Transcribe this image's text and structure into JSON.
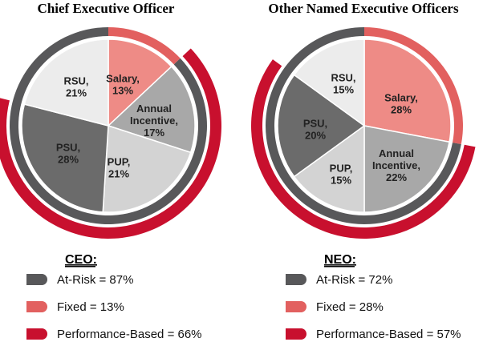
{
  "chart_data": [
    {
      "type": "pie",
      "title": "Chief Executive Officer",
      "slices": [
        {
          "label": [
            "Salary,",
            "13%"
          ],
          "value": 13,
          "color": "#ee8b86"
        },
        {
          "label": [
            "Annual",
            "Incentive,",
            "17%"
          ],
          "value": 17,
          "color": "#a8a8a8"
        },
        {
          "label": [
            "PUP,",
            "21%"
          ],
          "value": 21,
          "color": "#d3d3d3"
        },
        {
          "label": [
            "PSU,",
            "28%"
          ],
          "value": 28,
          "color": "#6b6b6b"
        },
        {
          "label": [
            "RSU,",
            "21%"
          ],
          "value": 21,
          "color": "#ececec"
        }
      ],
      "rings": [
        {
          "name": "At-Risk",
          "value": 87,
          "color": "#58585a"
        },
        {
          "name": "Fixed",
          "value": 13,
          "color": "#e2605f"
        },
        {
          "name": "Performance-Based",
          "value": 66,
          "color": "#c8102e"
        }
      ],
      "legend": {
        "heading": "CEO:",
        "items": [
          {
            "text": "At-Risk = 87%",
            "color": "#58585a"
          },
          {
            "text": "Fixed = 13%",
            "color": "#e2605f"
          },
          {
            "text": "Performance-Based = 66%",
            "color": "#c8102e"
          }
        ]
      }
    },
    {
      "type": "pie",
      "title": "Other Named Executive Officers",
      "slices": [
        {
          "label": [
            "Salary,",
            "28%"
          ],
          "value": 28,
          "color": "#ee8b86"
        },
        {
          "label": [
            "Annual",
            "Incentive,",
            "22%"
          ],
          "value": 22,
          "color": "#a8a8a8"
        },
        {
          "label": [
            "PUP,",
            "15%"
          ],
          "value": 15,
          "color": "#d3d3d3"
        },
        {
          "label": [
            "PSU,",
            "20%"
          ],
          "value": 20,
          "color": "#6b6b6b"
        },
        {
          "label": [
            "RSU,",
            "15%"
          ],
          "value": 15,
          "color": "#ececec"
        }
      ],
      "rings": [
        {
          "name": "At-Risk",
          "value": 72,
          "color": "#58585a"
        },
        {
          "name": "Fixed",
          "value": 28,
          "color": "#e2605f"
        },
        {
          "name": "Performance-Based",
          "value": 57,
          "color": "#c8102e"
        }
      ],
      "legend": {
        "heading": "NEO:",
        "items": [
          {
            "text": "At-Risk = 72%",
            "color": "#58585a"
          },
          {
            "text": "Fixed = 28%",
            "color": "#e2605f"
          },
          {
            "text": "Performance-Based = 57%",
            "color": "#c8102e"
          }
        ]
      }
    }
  ]
}
